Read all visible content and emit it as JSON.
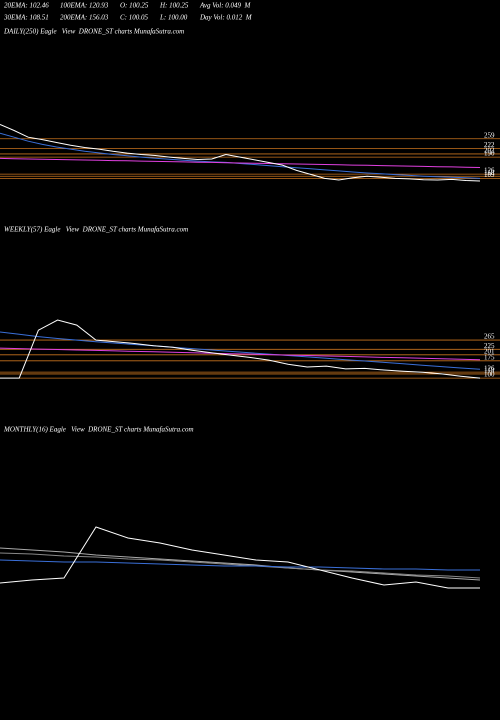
{
  "header": {
    "row1": [
      "20EMA: 102.46",
      "100EMA: 120.93",
      "O: 100.25",
      "H: 100.25",
      "Avg Vol: 0.049  M"
    ],
    "row2": [
      "30EMA: 108.51",
      "200EMA: 156.03",
      "C: 100.05",
      "L: 100.00",
      "Day Vol: 0.012  M"
    ]
  },
  "chart_data": [
    {
      "type": "line",
      "title": "DAILY(250) Eagle   View  DRONE_ST charts MunafaSutra.com",
      "ylim": [
        85,
        405
      ],
      "levels": [
        259,
        222,
        202,
        190,
        126,
        118,
        109
      ],
      "level_color": "#c8731e",
      "series": [
        {
          "color": "#3a6fd8",
          "values": [
            280,
            265,
            250,
            238,
            228,
            220,
            212,
            206,
            200,
            195,
            190,
            186,
            182,
            178,
            175,
            172,
            170,
            166,
            162,
            158,
            154,
            150,
            146,
            142,
            138,
            134,
            130,
            127,
            124,
            121,
            118,
            116,
            114,
            112,
            110
          ]
        },
        {
          "color": "#e040e0",
          "values": [
            185,
            184,
            183,
            182,
            181,
            180,
            179,
            178,
            177,
            176,
            175,
            174,
            173,
            172,
            171,
            170,
            169,
            168,
            167,
            166,
            165,
            164,
            163,
            162,
            161,
            160,
            159,
            158,
            157,
            156,
            155,
            154,
            153,
            152,
            151
          ]
        },
        {
          "color": "#ffffff",
          "values": [
            313,
            290,
            265,
            256,
            245,
            235,
            226,
            220,
            212,
            205,
            200,
            196,
            190,
            185,
            181,
            183,
            200,
            190,
            180,
            170,
            160,
            140,
            125,
            110,
            104,
            112,
            118,
            114,
            110,
            108,
            105,
            104,
            106,
            102,
            100
          ]
        }
      ]
    },
    {
      "type": "line",
      "title": "WEEKLY(57) Eagle   View  DRONE_ST charts MunafaSutra.com",
      "ylim": [
        70,
        439
      ],
      "levels": [
        265,
        225,
        201,
        175,
        126,
        118,
        100
      ],
      "level_color": "#c8731e",
      "series": [
        {
          "color": "#3a6fd8",
          "values": [
            300,
            290,
            280,
            272,
            265,
            258,
            252,
            246,
            240,
            234,
            228,
            222,
            216,
            210,
            204,
            198,
            192,
            186,
            180,
            174,
            168,
            162,
            156,
            150,
            144,
            138
          ]
        },
        {
          "color": "#e040e0",
          "values": [
            230,
            228,
            226,
            224,
            222,
            220,
            218,
            216,
            214,
            212,
            210,
            208,
            206,
            204,
            202,
            200,
            198,
            196,
            194,
            192,
            190,
            188,
            186,
            184,
            182,
            180
          ]
        },
        {
          "color": "#ffffff",
          "values": [
            100,
            100,
            308,
            352,
            330,
            265,
            258,
            250,
            240,
            234,
            221,
            210,
            200,
            190,
            178,
            160,
            148,
            152,
            140,
            142,
            135,
            130,
            125,
            118,
            108,
            100
          ]
        }
      ]
    },
    {
      "type": "line",
      "title": "MONTHLY(16) Eagle   View  DRONE_ST charts MunafaSutra.com",
      "ylim": [
        0,
        100
      ],
      "levels": [],
      "level_color": "#c8731e",
      "series": [
        {
          "color": "#aaaaaa",
          "values": [
            52,
            50,
            48,
            45,
            43,
            41,
            39,
            37,
            35,
            32,
            30,
            28,
            26,
            24,
            22,
            20
          ]
        },
        {
          "color": "#888888",
          "values": [
            47,
            46,
            44,
            43,
            41,
            40,
            38,
            36,
            34,
            32,
            30,
            29,
            27,
            25,
            24,
            22
          ]
        },
        {
          "color": "#3a6fd8",
          "values": [
            40,
            39,
            38,
            38,
            37,
            36,
            35,
            34,
            34,
            33,
            33,
            32,
            31,
            31,
            30,
            30
          ]
        },
        {
          "color": "#ffffff",
          "values": [
            17,
            20,
            22,
            73,
            62,
            57,
            50,
            45,
            40,
            38,
            30,
            22,
            15,
            18,
            12,
            12
          ]
        }
      ]
    }
  ]
}
